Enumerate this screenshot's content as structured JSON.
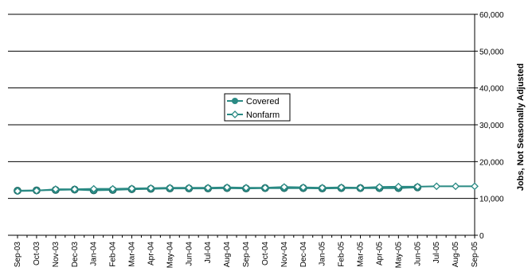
{
  "chart_data": {
    "type": "line",
    "title": "",
    "xlabel": "",
    "ylabel": "Jobs, Not Seasonally Adjusted",
    "y_axis_side": "right",
    "ylim": [
      0,
      60000
    ],
    "yticks": [
      "0",
      "10,000",
      "20,000",
      "30,000",
      "40,000",
      "50,000",
      "60,000"
    ],
    "grid": true,
    "legend_position": "center",
    "categories": [
      "Sep-03",
      "Oct-03",
      "Nov-03",
      "Dec-03",
      "Jan-04",
      "Feb-04",
      "Mar-04",
      "Apr-04",
      "May-04",
      "Jun-04",
      "Jul-04",
      "Aug-04",
      "Sep-04",
      "Oct-04",
      "Nov-04",
      "Dec-04",
      "Jan-05",
      "Feb-05",
      "Mar-05",
      "Apr-05",
      "May-05",
      "Jun-05",
      "Jul-05",
      "Aug-05",
      "Sep-05"
    ],
    "series": [
      {
        "name": "Covered",
        "color": "#2a8a84",
        "marker": "filled-circle",
        "values": [
          12100,
          12200,
          12300,
          12400,
          12200,
          12300,
          12500,
          12600,
          12700,
          12700,
          12700,
          12800,
          12700,
          12800,
          12800,
          12800,
          12700,
          12800,
          12800,
          12800,
          12800,
          13000,
          null,
          null,
          null
        ]
      },
      {
        "name": "Nonfarm",
        "color": "#2a8a84",
        "marker": "hollow-diamond",
        "values": [
          12000,
          12100,
          12500,
          12500,
          12600,
          12600,
          12700,
          12800,
          12900,
          12900,
          12900,
          13000,
          12900,
          12900,
          13100,
          13000,
          12900,
          13000,
          12900,
          13100,
          13200,
          13200,
          13300,
          13300,
          13300
        ]
      }
    ]
  }
}
